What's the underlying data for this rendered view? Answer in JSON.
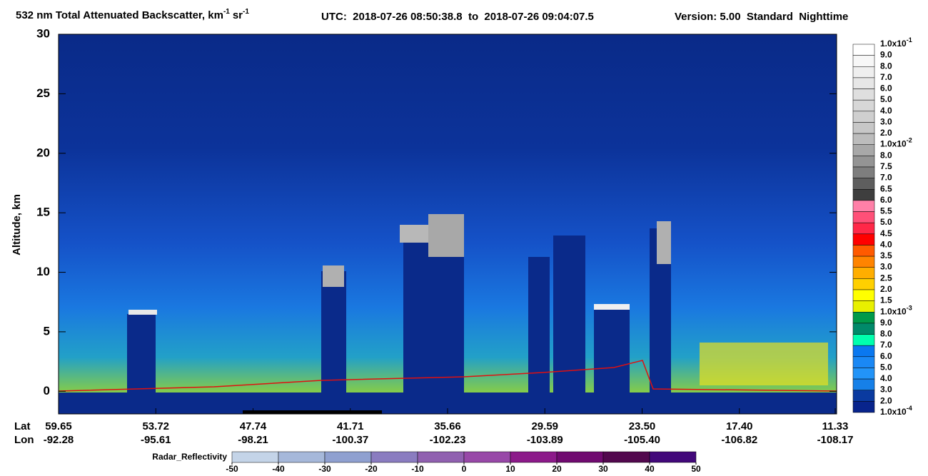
{
  "chart_data": {
    "type": "curtain",
    "title": {
      "text": "532 nm Total Attenuated Backscatter, km",
      "sup1": "-1",
      "unit2": "sr",
      "sup2": "-1"
    },
    "utc": "UTC:  2018-07-26 08:50:38.8  to  2018-07-26 09:04:07.5",
    "version": "Version: 5.00  Standard  Nighttime",
    "ylabel": "Altitude, km",
    "ylim": [
      -1.9,
      30
    ],
    "yticks": [
      0,
      5,
      10,
      15,
      20,
      25,
      30
    ],
    "lat_label": "Lat",
    "lon_label": "Lon",
    "lat": [
      59.65,
      53.72,
      47.74,
      41.71,
      35.66,
      29.59,
      {
        "value": 23.5,
        "label": "23.50"
      },
      {
        "value": 17.4,
        "label": "17.40"
      },
      11.33
    ],
    "lon": [
      -92.28,
      -95.61,
      -98.21,
      -100.37,
      -102.23,
      -103.89,
      {
        "value": -105.4,
        "label": "-105.40"
      },
      -106.82,
      -108.17
    ],
    "colorbar": {
      "labels": [
        {
          "text": "1.0x10",
          "sup": "-1"
        },
        {
          "text": "9.0"
        },
        {
          "text": "8.0"
        },
        {
          "text": "7.0"
        },
        {
          "text": "6.0"
        },
        {
          "text": "5.0"
        },
        {
          "text": "4.0"
        },
        {
          "text": "3.0"
        },
        {
          "text": "2.0"
        },
        {
          "text": "1.0x10",
          "sup": "-2"
        },
        {
          "text": "8.0"
        },
        {
          "text": "7.5"
        },
        {
          "text": "7.0"
        },
        {
          "text": "6.5"
        },
        {
          "text": "6.0"
        },
        {
          "text": "5.5"
        },
        {
          "text": "5.0"
        },
        {
          "text": "4.5"
        },
        {
          "text": "4.0"
        },
        {
          "text": "3.5"
        },
        {
          "text": "3.0"
        },
        {
          "text": "2.5"
        },
        {
          "text": "2.0"
        },
        {
          "text": "1.5"
        },
        {
          "text": "1.0x10",
          "sup": "-3"
        },
        {
          "text": "9.0"
        },
        {
          "text": "8.0"
        },
        {
          "text": "7.0"
        },
        {
          "text": "6.0"
        },
        {
          "text": "5.0"
        },
        {
          "text": "4.0"
        },
        {
          "text": "3.0"
        },
        {
          "text": "2.0"
        },
        {
          "text": "1.0x10",
          "sup": "-4"
        }
      ],
      "colors": [
        "#ffffff",
        "#f7f7f7",
        "#efefef",
        "#e7e7e7",
        "#dfdfdf",
        "#d7d7d7",
        "#cfcfcf",
        "#c7c7c7",
        "#bcbcbc",
        "#a8a8a8",
        "#949494",
        "#7e7e7e",
        "#5e5e5e",
        "#3e3e3e",
        "#ff80a8",
        "#ff5078",
        "#ff2848",
        "#ff0000",
        "#ff5a00",
        "#ff8400",
        "#ffae00",
        "#ffd000",
        "#ffff00",
        "#e8f000",
        "#009a4a",
        "#008a6a",
        "#00ffae",
        "#0a78f0",
        "#1a88f5",
        "#2294f8",
        "#1680e8",
        "#0a3aa0",
        "#08248c"
      ]
    },
    "radar": {
      "label": "Radar_Reflectivity",
      "ticks": [
        -50,
        -40,
        -30,
        -20,
        -10,
        0,
        10,
        20,
        30,
        40,
        50
      ],
      "colors": [
        "#c4d4e8",
        "#a6b8da",
        "#8fa0d0",
        "#8a7cc0",
        "#9060b0",
        "#9848a8",
        "#8c1a8a",
        "#700a70",
        "#52084e",
        "#42087a"
      ]
    }
  }
}
